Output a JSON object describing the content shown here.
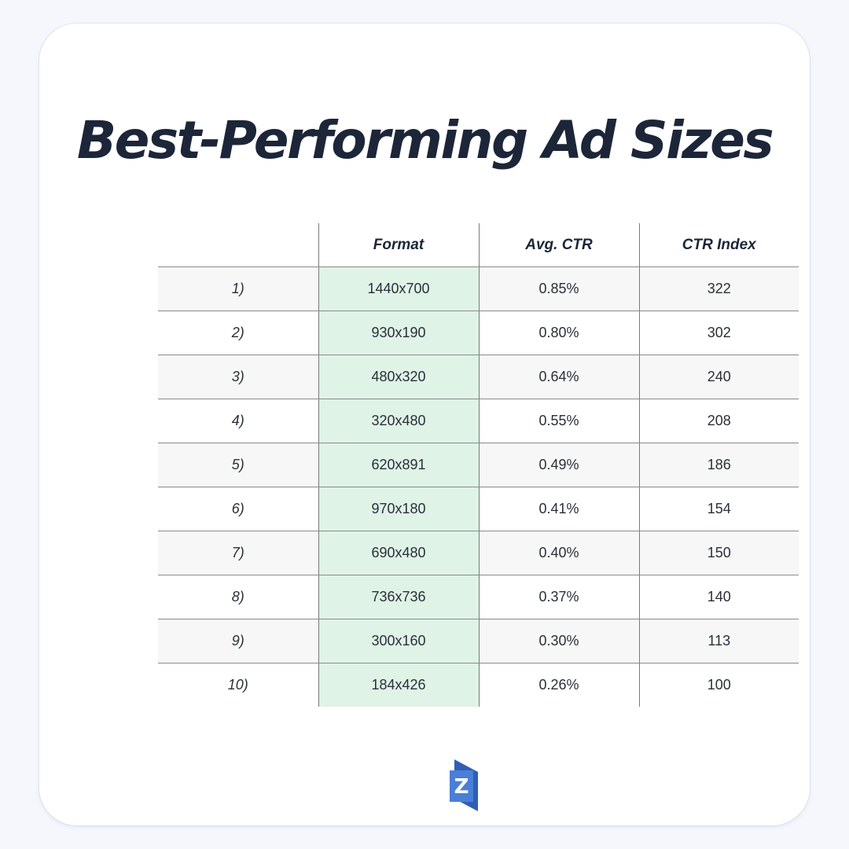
{
  "title": "Best-Performing Ad Sizes",
  "colors": {
    "title": "#1c2638",
    "format_column_highlight": "#dff3e7",
    "striped_row": "#f7f7f7",
    "logo_blue": "#4a7fd8"
  },
  "logo": {
    "icon": "z-logo-icon",
    "letter": "Z"
  },
  "chart_data": {
    "type": "table",
    "columns": [
      "",
      "Format",
      "Avg. CTR",
      "CTR Index"
    ],
    "rows": [
      {
        "rank": "1)",
        "format": "1440x700",
        "avg_ctr": "0.85%",
        "ctr_index": "322"
      },
      {
        "rank": "2)",
        "format": "930x190",
        "avg_ctr": "0.80%",
        "ctr_index": "302"
      },
      {
        "rank": "3)",
        "format": "480x320",
        "avg_ctr": "0.64%",
        "ctr_index": "240"
      },
      {
        "rank": "4)",
        "format": "320x480",
        "avg_ctr": "0.55%",
        "ctr_index": "208"
      },
      {
        "rank": "5)",
        "format": "620x891",
        "avg_ctr": "0.49%",
        "ctr_index": "186"
      },
      {
        "rank": "6)",
        "format": "970x180",
        "avg_ctr": "0.41%",
        "ctr_index": "154"
      },
      {
        "rank": "7)",
        "format": "690x480",
        "avg_ctr": "0.40%",
        "ctr_index": "150"
      },
      {
        "rank": "8)",
        "format": "736x736",
        "avg_ctr": "0.37%",
        "ctr_index": "140"
      },
      {
        "rank": "9)",
        "format": "300x160",
        "avg_ctr": "0.30%",
        "ctr_index": "113"
      },
      {
        "rank": "10)",
        "format": "184x426",
        "avg_ctr": "0.26%",
        "ctr_index": "100"
      }
    ]
  }
}
